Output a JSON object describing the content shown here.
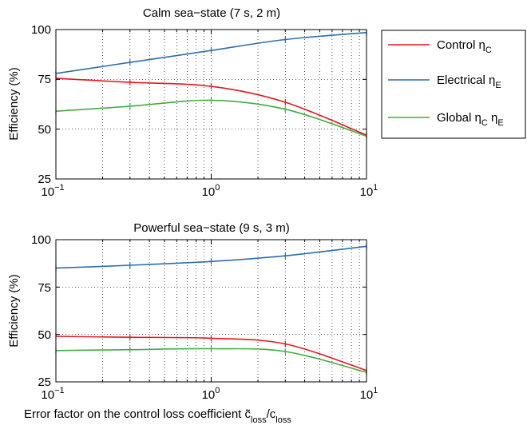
{
  "figure": {
    "xlabel_main": "Error factor on the control loss coefficient c̃",
    "xlabel_sub1": "loss",
    "xlabel_mid": "/c",
    "xlabel_sub2": "loss"
  },
  "legend": [
    {
      "base": "Control η",
      "sub1": "C",
      "mid": "",
      "sub2": "",
      "color": "#e8171f"
    },
    {
      "base": "Electrical η",
      "sub1": "E",
      "mid": "",
      "sub2": "",
      "color": "#2a6fad"
    },
    {
      "base": "Global η",
      "sub1": "C",
      "mid": " η",
      "sub2": "E",
      "color": "#3fae3f"
    }
  ],
  "chart_data": [
    {
      "type": "line",
      "title": "Calm sea−state (7 s, 2 m)",
      "ylabel": "Efficiency (%)",
      "xscale": "log",
      "xlim": [
        0.1,
        10
      ],
      "ylim": [
        25,
        100
      ],
      "yticks": [
        25,
        50,
        75,
        100
      ],
      "xticks": [
        {
          "base": "10",
          "exp": "−1"
        },
        {
          "base": "10",
          "exp": "0"
        },
        {
          "base": "10",
          "exp": "1"
        }
      ],
      "grid": true,
      "legend_position": "outside-right",
      "x": [
        0.1,
        0.3,
        1,
        3,
        10
      ],
      "series": [
        {
          "name": "Control η_C",
          "color": "#e8171f",
          "values": [
            75.5,
            73.5,
            71.5,
            63.5,
            47
          ]
        },
        {
          "name": "Electrical η_E",
          "color": "#2a6fad",
          "values": [
            78,
            83.5,
            89.5,
            95,
            98.5
          ]
        },
        {
          "name": "Global η_C η_E",
          "color": "#3fae3f",
          "values": [
            59,
            61.5,
            64.5,
            60,
            46.5
          ]
        }
      ]
    },
    {
      "type": "line",
      "title": "Powerful sea−state (9 s, 3 m)",
      "ylabel": "Efficiency (%)",
      "xscale": "log",
      "xlim": [
        0.1,
        10
      ],
      "ylim": [
        25,
        100
      ],
      "yticks": [
        25,
        50,
        75,
        100
      ],
      "xticks": [
        {
          "base": "10",
          "exp": "−1"
        },
        {
          "base": "10",
          "exp": "0"
        },
        {
          "base": "10",
          "exp": "1"
        }
      ],
      "grid": true,
      "x": [
        0.1,
        0.3,
        1,
        3,
        10
      ],
      "series": [
        {
          "name": "Control η_C",
          "color": "#e8171f",
          "values": [
            49,
            48.5,
            48,
            45,
            31
          ]
        },
        {
          "name": "Electrical η_E",
          "color": "#2a6fad",
          "values": [
            85,
            86.5,
            88.5,
            91.5,
            96.5
          ]
        },
        {
          "name": "Global η_C η_E",
          "color": "#3fae3f",
          "values": [
            41.5,
            42,
            42.5,
            41,
            30
          ]
        }
      ]
    }
  ]
}
